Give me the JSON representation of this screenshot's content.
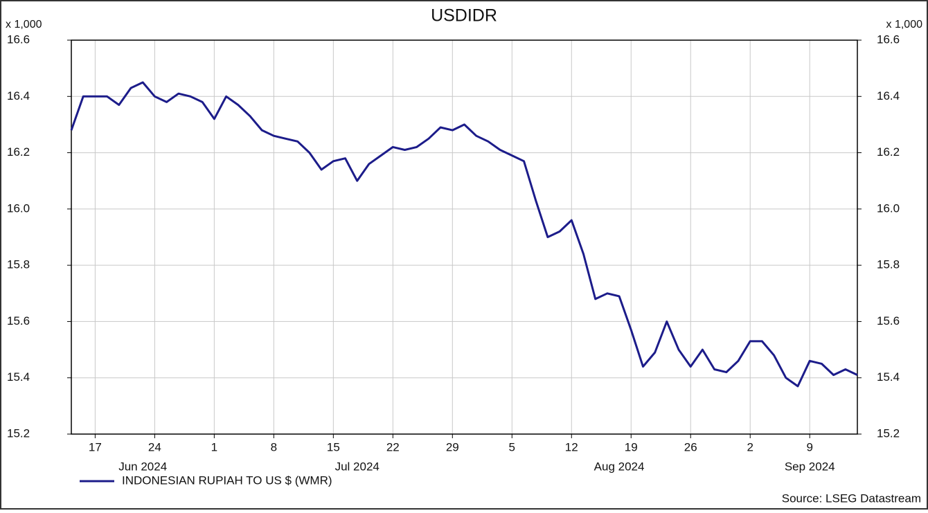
{
  "chart_data": {
    "type": "line",
    "title": "USDIDR",
    "y_unit": "x 1,000",
    "x": [
      "2024-06-13",
      "2024-06-14",
      "2024-06-17",
      "2024-06-18",
      "2024-06-19",
      "2024-06-20",
      "2024-06-21",
      "2024-06-24",
      "2024-06-25",
      "2024-06-26",
      "2024-06-27",
      "2024-06-28",
      "2024-07-01",
      "2024-07-02",
      "2024-07-03",
      "2024-07-04",
      "2024-07-05",
      "2024-07-08",
      "2024-07-09",
      "2024-07-10",
      "2024-07-11",
      "2024-07-12",
      "2024-07-15",
      "2024-07-16",
      "2024-07-17",
      "2024-07-18",
      "2024-07-19",
      "2024-07-22",
      "2024-07-23",
      "2024-07-24",
      "2024-07-25",
      "2024-07-26",
      "2024-07-29",
      "2024-07-30",
      "2024-07-31",
      "2024-08-01",
      "2024-08-02",
      "2024-08-05",
      "2024-08-06",
      "2024-08-07",
      "2024-08-08",
      "2024-08-09",
      "2024-08-12",
      "2024-08-13",
      "2024-08-14",
      "2024-08-15",
      "2024-08-16",
      "2024-08-19",
      "2024-08-20",
      "2024-08-21",
      "2024-08-22",
      "2024-08-23",
      "2024-08-26",
      "2024-08-27",
      "2024-08-28",
      "2024-08-29",
      "2024-08-30",
      "2024-09-02",
      "2024-09-03",
      "2024-09-04",
      "2024-09-05",
      "2024-09-06",
      "2024-09-09",
      "2024-09-10",
      "2024-09-11",
      "2024-09-12",
      "2024-09-13"
    ],
    "series": [
      {
        "name": "INDONESIAN RUPIAH TO US $ (WMR)",
        "color": "#1c1c8a",
        "values": [
          16.28,
          16.4,
          16.4,
          16.4,
          16.37,
          16.43,
          16.45,
          16.4,
          16.38,
          16.41,
          16.4,
          16.38,
          16.32,
          16.4,
          16.37,
          16.33,
          16.28,
          16.26,
          16.25,
          16.24,
          16.2,
          16.14,
          16.17,
          16.18,
          16.1,
          16.16,
          16.19,
          16.22,
          16.21,
          16.22,
          16.25,
          16.29,
          16.28,
          16.3,
          16.26,
          16.24,
          16.21,
          16.19,
          16.17,
          16.03,
          15.9,
          15.92,
          15.96,
          15.84,
          15.68,
          15.7,
          15.69,
          15.57,
          15.44,
          15.49,
          15.6,
          15.5,
          15.44,
          15.5,
          15.43,
          15.42,
          15.46,
          15.53,
          15.53,
          15.48,
          15.4,
          15.37,
          15.46,
          15.45,
          15.41,
          15.43,
          15.41
        ]
      }
    ],
    "xlim": [
      "2024-06-13",
      "2024-09-13"
    ],
    "xticks": [
      {
        "value": "2024-06-17",
        "label": "17"
      },
      {
        "value": "2024-06-24",
        "label": "24"
      },
      {
        "value": "2024-07-01",
        "label": "1"
      },
      {
        "value": "2024-07-08",
        "label": "8"
      },
      {
        "value": "2024-07-15",
        "label": "15"
      },
      {
        "value": "2024-07-22",
        "label": "22"
      },
      {
        "value": "2024-07-29",
        "label": "29"
      },
      {
        "value": "2024-08-05",
        "label": "5"
      },
      {
        "value": "2024-08-12",
        "label": "12"
      },
      {
        "value": "2024-08-19",
        "label": "19"
      },
      {
        "value": "2024-08-26",
        "label": "26"
      },
      {
        "value": "2024-09-02",
        "label": "2"
      },
      {
        "value": "2024-09-09",
        "label": "9"
      }
    ],
    "month_labels": [
      {
        "value": "2024-06-21",
        "label": "Jun 2024"
      },
      {
        "value": "2024-07-17",
        "label": "Jul 2024"
      },
      {
        "value": "2024-08-16",
        "label": "Aug 2024"
      },
      {
        "value": "2024-09-09",
        "label": "Sep 2024"
      }
    ],
    "ylim": [
      15.2,
      16.6
    ],
    "yticks": [
      15.2,
      15.4,
      15.6,
      15.8,
      {
        "value": 16,
        "label": "16.0"
      },
      16.2,
      16.4,
      16.6
    ],
    "grid": true,
    "source": "Source: LSEG Datastream"
  }
}
